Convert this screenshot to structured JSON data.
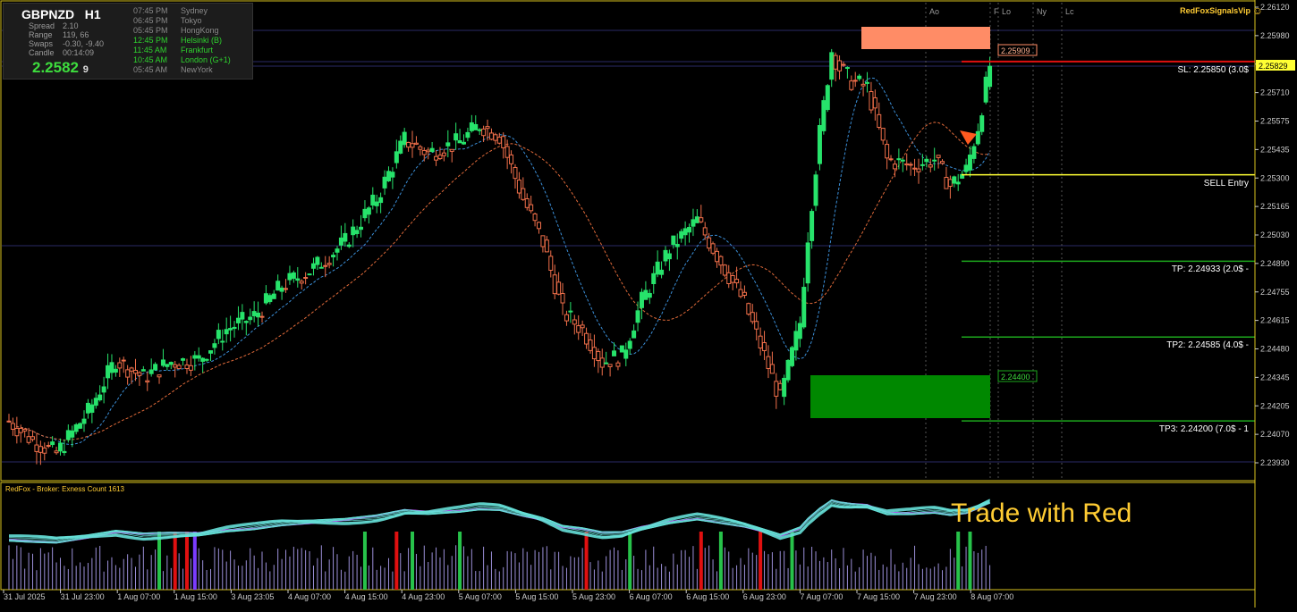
{
  "colors": {
    "bull": "#27e36b",
    "bear": "#f06f4a",
    "bg": "#000000",
    "axis": "#d9c21e",
    "sl": "#e01010",
    "entry": "#ffff33",
    "tp": "#1da81d"
  },
  "info_panel": {
    "symbol": "GBPNZD",
    "timeframe": "H1",
    "spread_label": "Spread",
    "spread_value": "2.10",
    "range_label": "Range",
    "range_value": "119, 66",
    "swaps_label": "Swaps",
    "swaps_value": "-0.30, -9.40",
    "candle_label": "Candle",
    "candle_value": "00:14:09",
    "price_main": "2.2582",
    "price_sub": "9"
  },
  "sessions": [
    {
      "time": "07:45 PM",
      "name": "Sydney",
      "color": "#8a8a8a"
    },
    {
      "time": "06:45 PM",
      "name": "Tokyo",
      "color": "#8a8a8a"
    },
    {
      "time": "05:45 PM",
      "name": "HongKong",
      "color": "#8a8a8a"
    },
    {
      "time": "12:45 PM",
      "name": "Helsinki  (B)",
      "color": "#2ed12e"
    },
    {
      "time": "11:45 AM",
      "name": "Frankfurt",
      "color": "#2ed12e"
    },
    {
      "time": "10:45 AM",
      "name": "London  (G+1)",
      "color": "#2ed12e"
    },
    {
      "time": "05:45 AM",
      "name": "NewYork",
      "color": "#8a8a8a"
    }
  ],
  "brand": "RedFoxSignalsVip",
  "brand_icon": "smiley-icon",
  "session_markers": [
    "Ao",
    "F",
    "Lo",
    "Ny",
    "Lc"
  ],
  "trade_levels": [
    {
      "label": "SL: 2.25850 (3.0$",
      "price": 2.2585,
      "color": "#e01010"
    },
    {
      "label": "SELL Entry",
      "price": 2.2533,
      "color": "#ffff33"
    },
    {
      "label": "TP: 2.24933 (2.0$ -",
      "price": 2.24933,
      "color": "#1da81d"
    },
    {
      "label": "TP2: 2.24585 (4.0$ -",
      "price": 2.24585,
      "color": "#1da81d"
    },
    {
      "label": "TP3: 2.24200 (7.0$ - 1",
      "price": 2.242,
      "color": "#1da81d"
    }
  ],
  "zone_labels": {
    "supply": "2.25909",
    "demand": "2.24400"
  },
  "current_price": "2.25829",
  "price_axis": [
    "2.26120",
    "2.25980",
    "2.25845",
    "2.25710",
    "2.25575",
    "2.25435",
    "2.25300",
    "2.25165",
    "2.25030",
    "2.24890",
    "2.24755",
    "2.24615",
    "2.24480",
    "2.24345",
    "2.24205",
    "2.24070",
    "2.23930"
  ],
  "indicator": {
    "label": "RedFox -  Broker: Exness    Count  1613",
    "scale_top": "105",
    "scale_bottom": "-5",
    "scale_bottom_extra": "00"
  },
  "trade_text": "Trade with Red",
  "time_axis": [
    "31 Jul 2025",
    "31 Jul 23:00",
    "1 Aug 07:00",
    "1 Aug 15:00",
    "3 Aug 23:05",
    "4 Aug 07:00",
    "4 Aug 15:00",
    "4 Aug 23:00",
    "5 Aug 07:00",
    "5 Aug 15:00",
    "5 Aug 23:00",
    "6 Aug 07:00",
    "6 Aug 15:00",
    "6 Aug 23:00",
    "7 Aug 07:00",
    "7 Aug 15:00",
    "7 Aug 23:00",
    "8 Aug 07:00"
  ],
  "chart_data": {
    "type": "candlestick",
    "symbol": "GBPNZD",
    "timeframe": "H1",
    "ylim": [
      2.2393,
      2.2612
    ],
    "anchors": [
      [
        0,
        2.242
      ],
      [
        6,
        2.2411
      ],
      [
        12,
        2.2405
      ],
      [
        20,
        2.2424
      ],
      [
        27,
        2.2448
      ],
      [
        34,
        2.244
      ],
      [
        41,
        2.2447
      ],
      [
        48,
        2.2448
      ],
      [
        55,
        2.2462
      ],
      [
        62,
        2.2468
      ],
      [
        69,
        2.2482
      ],
      [
        77,
        2.249
      ],
      [
        85,
        2.2502
      ],
      [
        93,
        2.2522
      ],
      [
        100,
        2.2549
      ],
      [
        106,
        2.2543
      ],
      [
        114,
        2.2548
      ],
      [
        119,
        2.2556
      ],
      [
        124,
        2.2551
      ],
      [
        130,
        2.2522
      ],
      [
        135,
        2.2502
      ],
      [
        140,
        2.247
      ],
      [
        145,
        2.2462
      ],
      [
        150,
        2.2447
      ],
      [
        155,
        2.245
      ],
      [
        160,
        2.2475
      ],
      [
        167,
        2.2499
      ],
      [
        174,
        2.2512
      ],
      [
        180,
        2.2493
      ],
      [
        186,
        2.2474
      ],
      [
        191,
        2.245
      ],
      [
        195,
        2.243
      ],
      [
        200,
        2.2465
      ],
      [
        202,
        2.2505
      ],
      [
        205,
        2.2552
      ],
      [
        208,
        2.259
      ],
      [
        210,
        2.2582
      ],
      [
        213,
        2.2576
      ],
      [
        217,
        2.2573
      ],
      [
        222,
        2.254
      ],
      [
        228,
        2.2537
      ],
      [
        234,
        2.254
      ],
      [
        238,
        2.2528
      ],
      [
        242,
        2.2535
      ],
      [
        245,
        2.2555
      ],
      [
        248,
        2.2583
      ]
    ],
    "moving_averages": [
      {
        "color": "#3b8fd8",
        "style": "dashed",
        "period": "fast"
      },
      {
        "color": "#e06a3a",
        "style": "dashed",
        "period": "slow"
      }
    ]
  }
}
